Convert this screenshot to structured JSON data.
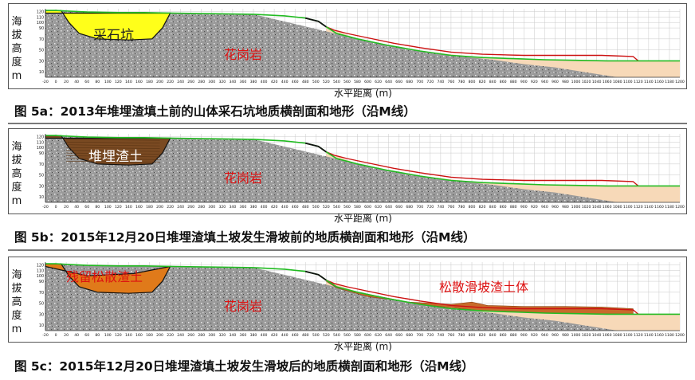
{
  "y_axis": {
    "label_chars": [
      "海",
      "拔",
      "高",
      "度",
      "m"
    ],
    "ticks": [
      10,
      30,
      50,
      70,
      90,
      100,
      110,
      120
    ]
  },
  "x_axis": {
    "label": "水平距离 (m)",
    "ticks": [
      -20,
      0,
      20,
      40,
      60,
      80,
      100,
      120,
      140,
      160,
      180,
      200,
      220,
      240,
      260,
      280,
      300,
      320,
      340,
      360,
      380,
      400,
      420,
      440,
      460,
      480,
      500,
      520,
      540,
      560,
      580,
      600,
      620,
      640,
      660,
      680,
      700,
      720,
      740,
      760,
      780,
      800,
      820,
      840,
      860,
      880,
      900,
      920,
      940,
      960,
      980,
      1000,
      1020,
      1040,
      1060,
      1080,
      1100,
      1120,
      1140,
      1160,
      1180,
      1200
    ]
  },
  "panels": [
    {
      "caption": "图 5a：2013年堆埋渣填土前的山体采石坑地质横剖面和地形（沿M线）",
      "labels": {
        "pit": "采石坑",
        "granite": "花岗岩"
      }
    },
    {
      "caption": "图 5b：2015年12月20日堆埋渣填土坡发生滑坡前的地质横剖面和地形（沿M线）",
      "labels": {
        "pit": "堆埋渣土",
        "granite": "花岗岩"
      }
    },
    {
      "caption": "图 5c：2015年12月20日堆埋渣填土坡发生滑坡后的地质横剖面和地形（沿M线）",
      "labels": {
        "pit": "残留松散渣土",
        "granite": "花岗岩",
        "debris": "松散滑坡渣土体"
      }
    }
  ],
  "colors": {
    "granite": "#9a9a9a",
    "pit_empty": "#ffff1a",
    "fill_soil": "#7a4a22",
    "residual_soil": "#e07a1a",
    "debris": "#c86a2a",
    "foothill": "#f7d9b8",
    "surface_green": "#22bb22",
    "surface_red": "#cc1111",
    "label_red": "#dd1111"
  }
}
